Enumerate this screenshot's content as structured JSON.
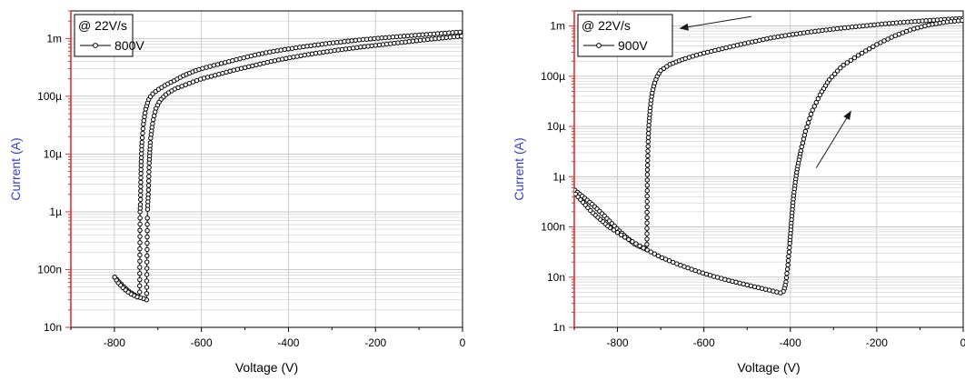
{
  "chart_data": [
    {
      "type": "line",
      "xlabel": "Voltage (V)",
      "ylabel": "Current (A)",
      "xlim": [
        -900,
        0
      ],
      "ylim": [
        1e-08,
        0.003
      ],
      "yscale": "log",
      "grid": true,
      "x_ticks": [
        -800,
        -600,
        -400,
        -200,
        0
      ],
      "x_tick_labels": [
        "-800",
        "-600",
        "-400",
        "-200",
        "0"
      ],
      "y_ticks": [
        1e-08,
        1e-07,
        1e-06,
        1e-05,
        0.0001,
        0.001
      ],
      "y_tick_labels": [
        "10n",
        "100n",
        "1µ",
        "10µ",
        "100µ",
        "1m"
      ],
      "legend": {
        "title": "@ 22V/s",
        "entries": [
          "800V"
        ],
        "placement": "top-left"
      },
      "series": [
        {
          "marker": "circle",
          "points": [
            [
              -800,
              7.5e-08
            ],
            [
              -790,
              6.2e-08
            ],
            [
              -780,
              5.2e-08
            ],
            [
              -770,
              4.4e-08
            ],
            [
              -760,
              3.9e-08
            ],
            [
              -750,
              3.5e-08
            ],
            [
              -742,
              3.2e-08
            ],
            [
              -741,
              1e-06
            ],
            [
              -740,
              1.5e-06
            ],
            [
              -739,
              5e-06
            ],
            [
              -737,
              1.5e-05
            ],
            [
              -733,
              3.5e-05
            ],
            [
              -728,
              6e-05
            ],
            [
              -722,
              8.5e-05
            ],
            [
              -715,
              0.000105
            ],
            [
              -700,
              0.00013
            ],
            [
              -680,
              0.00016
            ],
            [
              -660,
              0.00019
            ],
            [
              -640,
              0.00023
            ],
            [
              -620,
              0.000265
            ],
            [
              -600,
              0.0003
            ],
            [
              -560,
              0.00036
            ],
            [
              -520,
              0.00043
            ],
            [
              -480,
              0.00051
            ],
            [
              -440,
              0.00059
            ],
            [
              -400,
              0.00066
            ],
            [
              -360,
              0.00073
            ],
            [
              -320,
              0.0008
            ],
            [
              -280,
              0.00087
            ],
            [
              -240,
              0.00094
            ],
            [
              -200,
              0.001
            ],
            [
              -160,
              0.00106
            ],
            [
              -120,
              0.00112
            ],
            [
              -80,
              0.00118
            ],
            [
              -40,
              0.00124
            ],
            [
              0,
              0.0013
            ]
          ]
        },
        {
          "marker": "circle",
          "points": [
            [
              0,
              0.0011
            ],
            [
              -40,
              0.00103
            ],
            [
              -80,
              0.00096
            ],
            [
              -120,
              0.00089
            ],
            [
              -160,
              0.00082
            ],
            [
              -200,
              0.00076
            ],
            [
              -240,
              0.0007
            ],
            [
              -280,
              0.00064
            ],
            [
              -320,
              0.00058
            ],
            [
              -360,
              0.00052
            ],
            [
              -400,
              0.00046
            ],
            [
              -440,
              0.0004
            ],
            [
              -480,
              0.00034
            ],
            [
              -520,
              0.00029
            ],
            [
              -560,
              0.00024
            ],
            [
              -600,
              0.0002
            ],
            [
              -630,
              0.000165
            ],
            [
              -660,
              0.000135
            ],
            [
              -680,
              0.00011
            ],
            [
              -695,
              8.5e-05
            ],
            [
              -705,
              6e-05
            ],
            [
              -712,
              3.5e-05
            ],
            [
              -717,
              1.8e-05
            ],
            [
              -720,
              7e-06
            ],
            [
              -722,
              2e-06
            ],
            [
              -724,
              1e-06
            ],
            [
              -726,
              3e-08
            ],
            [
              -735,
              3.2e-08
            ],
            [
              -750,
              3.4e-08
            ],
            [
              -765,
              3.9e-08
            ],
            [
              -780,
              4.8e-08
            ],
            [
              -792,
              6e-08
            ],
            [
              -800,
              7.5e-08
            ]
          ]
        }
      ]
    },
    {
      "type": "line",
      "xlabel": "Voltage (V)",
      "ylabel": "Current (A)",
      "xlim": [
        -900,
        0
      ],
      "ylim": [
        1e-09,
        0.002
      ],
      "yscale": "log",
      "grid": true,
      "x_ticks": [
        -800,
        -600,
        -400,
        -200,
        0
      ],
      "x_tick_labels": [
        "-800",
        "-600",
        "-400",
        "-200",
        "0"
      ],
      "y_ticks": [
        1e-09,
        1e-08,
        1e-07,
        1e-06,
        1e-05,
        0.0001,
        0.001
      ],
      "y_tick_labels": [
        "1n",
        "10n",
        "100n",
        "1µ",
        "10µ",
        "100µ",
        "1m"
      ],
      "legend": {
        "title": "@ 22V/s",
        "entries": [
          "900V"
        ],
        "placement": "top-left"
      },
      "annotations": [
        {
          "type": "arrow",
          "from": [
            -490,
            0.00155
          ],
          "to": [
            -655,
            0.0009
          ]
        },
        {
          "type": "arrow",
          "from": [
            -340,
            1.5e-06
          ],
          "to": [
            -260,
            2e-05
          ]
        }
      ],
      "series": [
        {
          "marker": "circle",
          "points": [
            [
              -900,
              5.5e-07
            ],
            [
              -880,
              4e-07
            ],
            [
              -860,
              2.9e-07
            ],
            [
              -840,
              2e-07
            ],
            [
              -820,
              1.35e-07
            ],
            [
              -800,
              9e-08
            ],
            [
              -780,
              6.3e-08
            ],
            [
              -760,
              4.5e-08
            ],
            [
              -740,
              3.8e-08
            ],
            [
              -732,
              3.5e-08
            ],
            [
              -731,
              1.1e-06
            ],
            [
              -729,
              5e-06
            ],
            [
              -727,
              1.2e-05
            ],
            [
              -724,
              2.5e-05
            ],
            [
              -720,
              4.5e-05
            ],
            [
              -715,
              7e-05
            ],
            [
              -708,
              0.0001
            ],
            [
              -700,
              0.00013
            ],
            [
              -680,
              0.00017
            ],
            [
              -660,
              0.0002
            ],
            [
              -640,
              0.00023
            ],
            [
              -600,
              0.00029
            ],
            [
              -560,
              0.00035
            ],
            [
              -520,
              0.00042
            ],
            [
              -480,
              0.0005
            ],
            [
              -440,
              0.00059
            ],
            [
              -400,
              0.00067
            ],
            [
              -360,
              0.00075
            ],
            [
              -320,
              0.00083
            ],
            [
              -280,
              0.00091
            ],
            [
              -240,
              0.00099
            ],
            [
              -200,
              0.00107
            ],
            [
              -160,
              0.00115
            ],
            [
              -120,
              0.00122
            ],
            [
              -80,
              0.00129
            ],
            [
              -40,
              0.00136
            ],
            [
              0,
              0.00142
            ]
          ]
        },
        {
          "marker": "circle",
          "points": [
            [
              0,
              0.0013
            ],
            [
              -40,
              0.0012
            ],
            [
              -80,
              0.00105
            ],
            [
              -120,
              0.00085
            ],
            [
              -160,
              0.00063
            ],
            [
              -200,
              0.00043
            ],
            [
              -240,
              0.00027
            ],
            [
              -280,
              0.00016
            ],
            [
              -310,
              8.5e-05
            ],
            [
              -330,
              4.5e-05
            ],
            [
              -350,
              2e-05
            ],
            [
              -365,
              8e-06
            ],
            [
              -375,
              3.5e-06
            ],
            [
              -385,
              1.3e-06
            ],
            [
              -392,
              4.5e-07
            ],
            [
              -397,
              1.5e-07
            ],
            [
              -401,
              5e-08
            ],
            [
              -405,
              2e-08
            ],
            [
              -410,
              8e-09
            ],
            [
              -415,
              5.3e-09
            ],
            [
              -420,
              4.8e-09
            ],
            [
              -460,
              5.8e-09
            ],
            [
              -500,
              7e-09
            ],
            [
              -540,
              8.5e-09
            ],
            [
              -580,
              1.05e-08
            ],
            [
              -620,
              1.35e-08
            ],
            [
              -660,
              1.8e-08
            ],
            [
              -700,
              2.5e-08
            ],
            [
              -740,
              3.8e-08
            ],
            [
              -780,
              6e-08
            ],
            [
              -820,
              1e-07
            ],
            [
              -860,
              2e-07
            ],
            [
              -900,
              4.8e-07
            ]
          ]
        }
      ]
    }
  ]
}
